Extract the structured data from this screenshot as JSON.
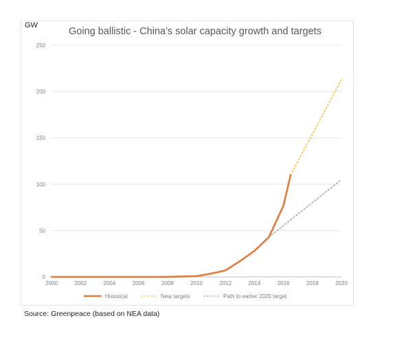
{
  "header": {
    "unit_label": "GW",
    "title": "Going ballistic - China's solar capacity growth and targets"
  },
  "footer": {
    "source": "Source: Greenpeace (based on NEA data)"
  },
  "colors": {
    "historical": "#e07b39",
    "new_targets": "#f5c242",
    "earlier_path": "#a6a6a6",
    "grid": "#e6e6e6",
    "axis": "#bfbfbf"
  },
  "chart_data": {
    "type": "line",
    "title": "Going ballistic - China's solar capacity growth and targets",
    "ylabel": "GW",
    "xlabel": "",
    "xlim": [
      2000,
      2020
    ],
    "ylim": [
      0,
      250
    ],
    "x_ticks": [
      2000,
      2002,
      2004,
      2006,
      2008,
      2010,
      2012,
      2014,
      2016,
      2018,
      2020
    ],
    "y_ticks": [
      0,
      50,
      100,
      150,
      200,
      250
    ],
    "grid": true,
    "legend": "bottom",
    "series": [
      {
        "name": "Historical",
        "style": "solid",
        "points": [
          [
            2000,
            0
          ],
          [
            2002,
            0
          ],
          [
            2004,
            0
          ],
          [
            2006,
            0
          ],
          [
            2008,
            0.1
          ],
          [
            2010,
            0.8
          ],
          [
            2011,
            3.5
          ],
          [
            2012,
            7
          ],
          [
            2013,
            17
          ],
          [
            2014,
            28
          ],
          [
            2015,
            43
          ],
          [
            2016,
            77
          ],
          [
            2016.5,
            110
          ]
        ]
      },
      {
        "name": "New targets",
        "style": "dotted",
        "points": [
          [
            2016.5,
            110
          ],
          [
            2020,
            213
          ]
        ]
      },
      {
        "name": "Path to earlier 2020 target",
        "style": "dotted",
        "points": [
          [
            2015,
            43
          ],
          [
            2020,
            105
          ]
        ]
      }
    ]
  }
}
